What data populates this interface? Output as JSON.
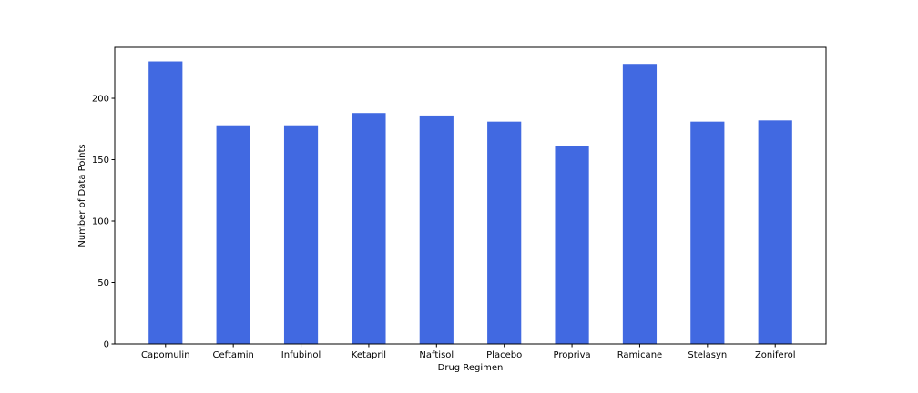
{
  "chart_data": {
    "type": "bar",
    "categories": [
      "Capomulin",
      "Ceftamin",
      "Infubinol",
      "Ketapril",
      "Naftisol",
      "Placebo",
      "Propriva",
      "Ramicane",
      "Stelasyn",
      "Zoniferol"
    ],
    "values": [
      230,
      178,
      178,
      188,
      186,
      181,
      161,
      228,
      181,
      182
    ],
    "title": "",
    "xlabel": "Drug Regimen",
    "ylabel": "Number of Data Points",
    "ylim": [
      0,
      241.5
    ],
    "yticks": [
      0,
      50,
      100,
      150,
      200
    ],
    "grid": false,
    "bar_color": "#4169e1"
  }
}
